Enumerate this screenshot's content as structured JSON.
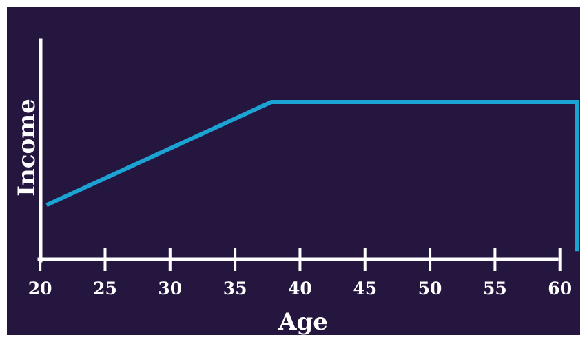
{
  "chart_data": {
    "type": "line",
    "title": "",
    "xlabel": "Age",
    "ylabel": "Income",
    "xlim": [
      17.5,
      61.5
    ],
    "ylim": [
      0,
      1
    ],
    "x_ticks": [
      20,
      25,
      30,
      35,
      40,
      45,
      50,
      55,
      60
    ],
    "y_ticks": [],
    "grid": false,
    "legend": "none",
    "series": [
      {
        "color": "#1aa3d3",
        "points": [
          {
            "x": 20.5,
            "y": 0.33
          },
          {
            "x": 37.8,
            "y": 1.0
          },
          {
            "x": 61.3,
            "y": 1.0
          },
          {
            "x": 61.3,
            "y": 0.03
          }
        ]
      }
    ],
    "colors": {
      "background": "#25163f",
      "axes": "#ffffff",
      "line": "#1aa3d3"
    }
  }
}
